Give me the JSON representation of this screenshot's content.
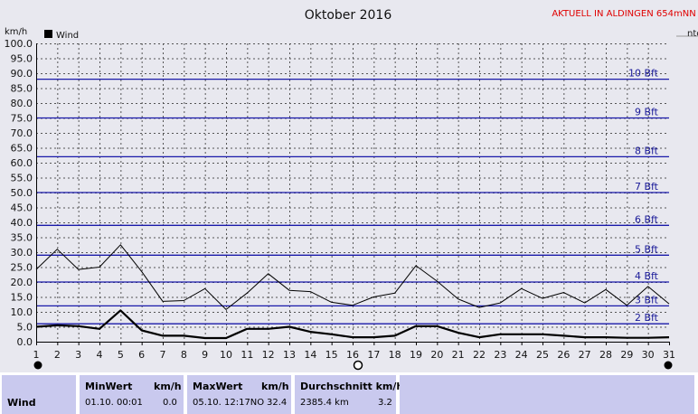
{
  "header": {
    "title": "Oktober 2016",
    "live_link": "AKTUELL IN ALDINGEN 654mNN",
    "partial_right": "nte"
  },
  "colors": {
    "wind_line": "#000000",
    "gust_line": "#000000",
    "beaufort_line": "#1a1aaa",
    "beaufort_label": "#1a1a99",
    "grid": "#555555",
    "plot_bg": "#e8e8ef",
    "link": "#e00000",
    "panel": "#c9c9ee"
  },
  "chart_data": {
    "type": "line",
    "ylabel": "km/h",
    "ylim": [
      0,
      100
    ],
    "yticks": [
      "0.0",
      "5.0",
      "10.0",
      "15.0",
      "20.0",
      "25.0",
      "30.0",
      "35.0",
      "40.0",
      "45.0",
      "50.0",
      "55.0",
      "60.0",
      "65.0",
      "70.0",
      "75.0",
      "80.0",
      "85.0",
      "90.0",
      "95.0",
      "100.0"
    ],
    "x": [
      1,
      2,
      3,
      4,
      5,
      6,
      7,
      8,
      9,
      10,
      11,
      12,
      13,
      14,
      15,
      16,
      17,
      18,
      19,
      20,
      21,
      22,
      23,
      24,
      25,
      26,
      27,
      28,
      29,
      30,
      31
    ],
    "legend": "Wind",
    "series": [
      {
        "name": "Wind",
        "values": [
          5.0,
          5.5,
          5.2,
          4.3,
          10.5,
          3.8,
          2.0,
          2.0,
          1.2,
          1.2,
          4.3,
          4.3,
          5.0,
          3.3,
          2.5,
          1.5,
          1.5,
          2.0,
          5.2,
          5.2,
          3.0,
          1.5,
          2.5,
          2.5,
          2.5,
          2.0,
          1.5,
          1.5,
          1.3,
          1.3,
          1.5
        ]
      },
      {
        "values": [
          24.2,
          31.0,
          24.2,
          25.0,
          32.5,
          23.5,
          13.5,
          13.8,
          17.8,
          10.8,
          16.3,
          22.8,
          17.2,
          16.8,
          13.2,
          12.2,
          15.0,
          16.3,
          25.5,
          20.3,
          14.3,
          11.5,
          13.0,
          17.8,
          14.5,
          16.5,
          13.0,
          17.5,
          12.2,
          18.5,
          12.7
        ]
      }
    ],
    "beaufort": [
      {
        "label": "2 Bft",
        "value": 6
      },
      {
        "label": "3 Bft",
        "value": 12
      },
      {
        "label": "4 Bft",
        "value": 20
      },
      {
        "label": "5 Bft",
        "value": 29
      },
      {
        "label": "6 Bft",
        "value": 39
      },
      {
        "label": "7 Bft",
        "value": 50
      },
      {
        "label": "8 Bft",
        "value": 62
      },
      {
        "label": "9 Bft",
        "value": 75
      },
      {
        "label": "10 Bft",
        "value": 88
      }
    ]
  },
  "stats": {
    "row_label": "Wind",
    "min_title": "MinWert",
    "min_unit": "km/h",
    "min_datetime": "01.10.  00:01",
    "min_value": "0.0",
    "max_title": "MaxWert",
    "max_unit": "km/h",
    "max_datetime": "05.10.  12:17NO",
    "max_value": "32.4",
    "avg_title": "Durchschnitt km/h",
    "avg_distance": "2385.4 km",
    "avg_value": "3.2"
  }
}
